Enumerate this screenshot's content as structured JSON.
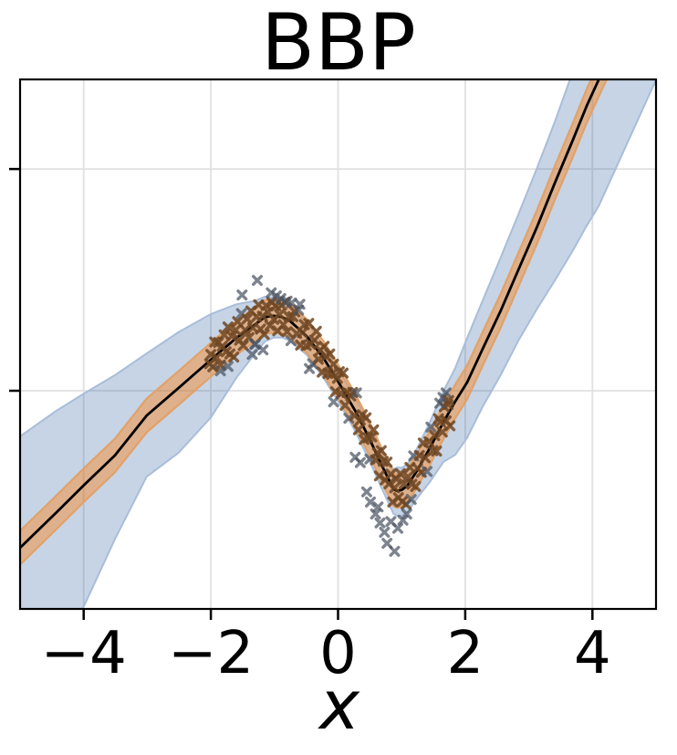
{
  "figure": {
    "title": "BBP",
    "x_axis_label": "x"
  },
  "style": {
    "background": "#ffffff",
    "spine_color": "#000000",
    "grid_color": "#e0e0e0",
    "mean_line_color": "#000000",
    "epistemic_fill": "rgba(52,101,164,0.28)",
    "epistemic_edge": "#a9bdd9",
    "aleatoric_fill": "rgba(255,127,14,0.42)",
    "aleatoric_edge": "#e1a269",
    "scatter_in_band_color": "rgba(110,70,35,0.85)",
    "scatter_out_band_color": "rgba(75,84,98,0.72)"
  },
  "chart_data": {
    "type": "line",
    "title": "BBP",
    "xlabel": "x",
    "ylabel": "",
    "xlim": [
      -5,
      5
    ],
    "ylim": [
      -4.92,
      7.02
    ],
    "grid": true,
    "legend": "none",
    "x_ticks": {
      "values": [
        -4,
        -2,
        0,
        2,
        4
      ],
      "labels": [
        "−4",
        "−2",
        "0",
        "2",
        "4"
      ]
    },
    "y_ticks": {
      "values": [
        0,
        5
      ],
      "labels": [
        "",
        ""
      ]
    },
    "series": [
      {
        "name": "predictive-mean",
        "kind": "line",
        "x": [
          -5.0,
          -4.44,
          -3.99,
          -3.51,
          -3.01,
          -2.51,
          -2.0,
          -1.6,
          -1.3,
          -1.15,
          -1.01,
          -0.88,
          -0.76,
          -0.49,
          -0.23,
          0.0,
          0.27,
          0.49,
          0.67,
          0.81,
          0.87,
          0.93,
          1.0,
          1.09,
          1.24,
          1.44,
          1.66,
          1.84,
          2.03,
          2.27,
          2.56,
          2.84,
          3.13,
          3.41,
          3.7,
          3.91,
          4.1,
          5.0
        ],
        "y": [
          -3.54,
          -2.76,
          -2.12,
          -1.46,
          -0.56,
          0.06,
          0.7,
          1.19,
          1.5,
          1.66,
          1.69,
          1.66,
          1.58,
          1.23,
          0.74,
          0.21,
          -0.45,
          -1.07,
          -1.63,
          -2.04,
          -2.22,
          -2.26,
          -2.24,
          -2.14,
          -1.81,
          -1.3,
          -0.7,
          -0.25,
          0.19,
          0.93,
          1.81,
          2.74,
          3.7,
          4.69,
          5.68,
          6.42,
          7.02,
          9.81
        ]
      },
      {
        "name": "aleatoric-uncertainty-band",
        "kind": "band",
        "halfwidth": 0.38
      },
      {
        "name": "epistemic-uncertainty-band",
        "kind": "band",
        "hi_offset": [
          2.51,
          2.3,
          2.06,
          1.81,
          1.4,
          1.26,
          1.03,
          0.76,
          0.53,
          0.46,
          0.41,
          0.37,
          0.35,
          0.3,
          0.28,
          0.27,
          0.3,
          0.3,
          0.32,
          0.4,
          0.45,
          0.53,
          0.5,
          0.48,
          0.5,
          0.58,
          0.7,
          0.75,
          1.0,
          1.09,
          1.2,
          1.25,
          1.33,
          1.38,
          1.55,
          1.75,
          1.9,
          2.25
        ],
        "lo_offset": [
          3.4,
          3.05,
          2.72,
          1.89,
          1.38,
          1.46,
          1.3,
          0.9,
          0.65,
          0.55,
          0.49,
          0.46,
          0.45,
          0.42,
          0.45,
          0.44,
          0.46,
          0.5,
          0.52,
          0.54,
          0.55,
          0.56,
          0.58,
          0.6,
          0.62,
          0.76,
          0.9,
          1.2,
          1.25,
          1.3,
          1.45,
          1.6,
          1.85,
          2.2,
          2.5,
          2.7,
          2.85,
          2.8
        ]
      },
      {
        "name": "observations",
        "kind": "scatter",
        "marker": "X",
        "points": [
          [
            -2.0,
            0.82
          ],
          [
            -1.97,
            0.54
          ],
          [
            -1.94,
            1.1
          ],
          [
            -1.91,
            0.75
          ],
          [
            -1.88,
            1.09
          ],
          [
            -1.85,
            0.58
          ],
          [
            -1.82,
            1.0
          ],
          [
            -1.79,
            1.26
          ],
          [
            -1.76,
            0.88
          ],
          [
            -1.73,
            1.44
          ],
          [
            -1.7,
            0.83
          ],
          [
            -1.67,
            1.23
          ],
          [
            -1.64,
            0.76
          ],
          [
            -1.61,
            1.37
          ],
          [
            -1.58,
            1.56
          ],
          [
            -1.55,
            1.14
          ],
          [
            -1.52,
            1.74
          ],
          [
            -1.49,
            1.02
          ],
          [
            -1.46,
            1.37
          ],
          [
            -1.43,
            1.62
          ],
          [
            -1.4,
            1.2
          ],
          [
            -1.37,
            1.8
          ],
          [
            -1.34,
            1.42
          ],
          [
            -1.31,
            1.05
          ],
          [
            -1.28,
            1.67
          ],
          [
            -1.25,
            1.94
          ],
          [
            -1.22,
            1.39
          ],
          [
            -1.19,
            1.68
          ],
          [
            -1.16,
            1.27
          ],
          [
            -1.13,
            1.92
          ],
          [
            -1.1,
            1.77
          ],
          [
            -1.07,
            1.47
          ],
          [
            -1.04,
            1.99
          ],
          [
            -1.01,
            1.61
          ],
          [
            -0.98,
            1.91
          ],
          [
            -0.95,
            1.35
          ],
          [
            -0.92,
            1.72
          ],
          [
            -0.89,
            1.93
          ],
          [
            -0.86,
            1.49
          ],
          [
            -0.83,
            2.0
          ],
          [
            -0.8,
            1.33
          ],
          [
            -0.77,
            1.67
          ],
          [
            -0.74,
            1.13
          ],
          [
            -0.71,
            1.67
          ],
          [
            -0.68,
            1.78
          ],
          [
            -0.65,
            1.29
          ],
          [
            -0.62,
            1.82
          ],
          [
            -0.59,
            1.03
          ],
          [
            -0.56,
            1.31
          ],
          [
            -0.53,
            1.49
          ],
          [
            -0.5,
            1.02
          ],
          [
            -0.46,
            1.52
          ],
          [
            -0.43,
            1.05
          ],
          [
            -0.4,
            0.61
          ],
          [
            -0.37,
            1.14
          ],
          [
            -0.34,
            1.34
          ],
          [
            -0.31,
            0.71
          ],
          [
            -0.28,
            0.91
          ],
          [
            -0.25,
            0.42
          ],
          [
            -0.22,
            1.0
          ],
          [
            -0.19,
            0.78
          ],
          [
            -0.16,
            0.39
          ],
          [
            -0.13,
            0.83
          ],
          [
            -0.1,
            0.37
          ],
          [
            -0.07,
            0.6
          ],
          [
            -0.04,
            -0.02
          ],
          [
            -0.01,
            0.28
          ],
          [
            0.02,
            0.43
          ],
          [
            0.05,
            -0.06
          ],
          [
            0.08,
            0.4
          ],
          [
            0.11,
            -0.33
          ],
          [
            0.14,
            -0.04
          ],
          [
            0.17,
            -0.62
          ],
          [
            0.2,
            -0.12
          ],
          [
            0.23,
            -0.04
          ],
          [
            0.26,
            -0.56
          ],
          [
            0.29,
            -0.05
          ],
          [
            0.32,
            -0.88
          ],
          [
            0.35,
            -0.66
          ],
          [
            0.38,
            -0.54
          ],
          [
            0.41,
            -1.1
          ],
          [
            0.44,
            -0.61
          ],
          [
            0.47,
            -1.06
          ],
          [
            0.5,
            -1.54
          ],
          [
            0.53,
            -1.04
          ],
          [
            0.56,
            -0.88
          ],
          [
            0.59,
            -1.56
          ],
          [
            0.62,
            -1.4
          ],
          [
            0.65,
            -1.92
          ],
          [
            0.68,
            -1.35
          ],
          [
            0.71,
            -1.59
          ],
          [
            0.74,
            -2.01
          ],
          [
            0.77,
            -1.61
          ],
          [
            0.8,
            -2.1
          ],
          [
            0.83,
            -1.88
          ],
          [
            0.86,
            -2.51
          ],
          [
            0.89,
            -2.19
          ],
          [
            0.92,
            -1.99
          ],
          [
            0.95,
            -2.41
          ],
          [
            0.98,
            -1.87
          ],
          [
            1.01,
            -2.5
          ],
          [
            1.04,
            -2.1
          ],
          [
            1.07,
            -2.56
          ],
          [
            1.1,
            -1.94
          ],
          [
            1.13,
            -1.73
          ],
          [
            1.16,
            -2.11
          ],
          [
            1.19,
            -1.47
          ],
          [
            1.22,
            -2.16
          ],
          [
            1.25,
            -1.75
          ],
          [
            1.28,
            -1.46
          ],
          [
            1.31,
            -1.84
          ],
          [
            1.34,
            -1.18
          ],
          [
            1.37,
            -1.51
          ],
          [
            1.4,
            -1.82
          ],
          [
            1.43,
            -1.15
          ],
          [
            1.46,
            -0.82
          ],
          [
            1.49,
            -1.35
          ],
          [
            1.52,
            -1.01
          ],
          [
            1.55,
            -1.36
          ],
          [
            1.58,
            -0.63
          ],
          [
            1.61,
            -0.7
          ],
          [
            1.64,
            -0.93
          ],
          [
            1.67,
            -0.36
          ],
          [
            1.7,
            -0.68
          ],
          [
            1.73,
            -0.31
          ],
          [
            1.76,
            -0.79
          ],
          [
            -2.02,
            0.61
          ],
          [
            -1.85,
            0.45
          ],
          [
            -1.73,
            0.55
          ],
          [
            -1.51,
            2.16
          ],
          [
            -1.35,
            0.82
          ],
          [
            -1.3,
            1.05
          ],
          [
            -1.27,
            2.49
          ],
          [
            -1.18,
            0.92
          ],
          [
            -1.05,
            2.21
          ],
          [
            -0.97,
            2.14
          ],
          [
            -0.9,
            2.08
          ],
          [
            -0.8,
            2.02
          ],
          [
            -0.73,
            1.98
          ],
          [
            -0.6,
            1.95
          ],
          [
            -0.45,
            0.5
          ],
          [
            -0.07,
            -0.25
          ],
          [
            0.27,
            -1.5
          ],
          [
            0.35,
            -1.62
          ],
          [
            0.45,
            -2.28
          ],
          [
            0.51,
            -2.51
          ],
          [
            0.59,
            -2.78
          ],
          [
            0.63,
            -2.62
          ],
          [
            0.66,
            -2.98
          ],
          [
            0.73,
            -3.19
          ],
          [
            0.77,
            -3.44
          ],
          [
            0.83,
            -2.95
          ],
          [
            0.89,
            -3.62
          ],
          [
            0.94,
            -3.1
          ],
          [
            1.02,
            -2.92
          ],
          [
            1.08,
            -2.78
          ],
          [
            1.15,
            -2.45
          ],
          [
            1.6,
            -0.28
          ],
          [
            1.65,
            -0.15
          ],
          [
            1.7,
            -0.05
          ],
          [
            1.74,
            -0.22
          ]
        ]
      }
    ]
  }
}
